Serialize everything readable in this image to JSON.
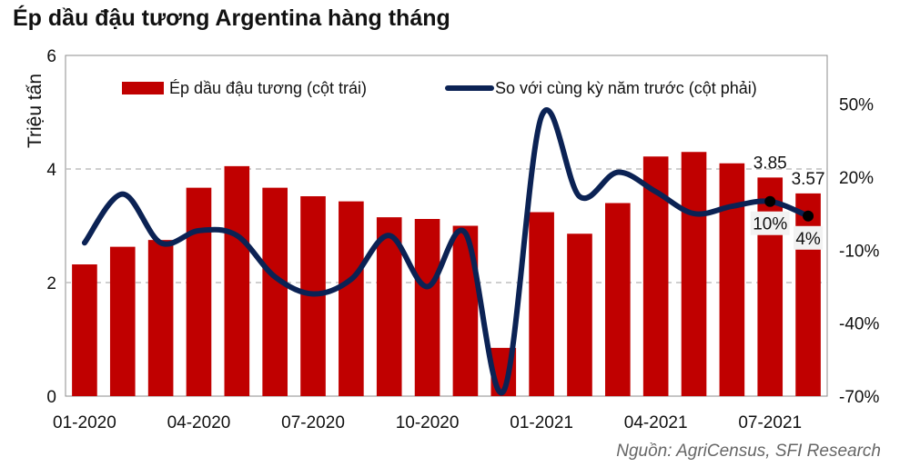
{
  "title": "Ép dầu đậu tương Argentina hàng tháng",
  "source": "Nguồn: AgriCensus, SFI Research",
  "colors": {
    "bar": "#C00000",
    "line": "#0B2254",
    "grid": "#BFBFBF"
  },
  "chart_data": {
    "type": "bar+line",
    "title": "Ép dầu đậu tương Argentina hàng tháng",
    "ylabel": "Triệu tấn",
    "ylim": [
      0,
      6
    ],
    "yticks": [
      0,
      2,
      4,
      6
    ],
    "y2lim": [
      -70,
      70
    ],
    "y2ticks": [
      "50%",
      "20%",
      "-10%",
      "-40%",
      "-70%"
    ],
    "y2tick_values": [
      50,
      20,
      -10,
      -40,
      -70
    ],
    "grid": "horizontal dashed at 2 and 4",
    "legend_placement": "top",
    "months": [
      "2020-01",
      "2020-02",
      "2020-03",
      "2020-04",
      "2020-05",
      "2020-06",
      "2020-07",
      "2020-08",
      "2020-09",
      "2020-10",
      "2020-11",
      "2020-12",
      "2021-01",
      "2021-02",
      "2021-03",
      "2021-04",
      "2021-05",
      "2021-06",
      "2021-07",
      "2021-08"
    ],
    "xtick_labels": [
      "01-2020",
      "04-2020",
      "07-2020",
      "10-2020",
      "01-2021",
      "04-2021",
      "07-2021"
    ],
    "xtick_indices": [
      0,
      3,
      6,
      9,
      12,
      15,
      18
    ],
    "series": [
      {
        "name": "Ép dầu đậu tương (cột trái)",
        "type": "bar",
        "axis": "left",
        "values": [
          2.32,
          2.63,
          2.75,
          3.67,
          4.05,
          3.67,
          3.52,
          3.43,
          3.15,
          3.12,
          3.0,
          0.85,
          3.24,
          2.86,
          3.4,
          4.22,
          4.3,
          4.1,
          3.85,
          3.57
        ]
      },
      {
        "name": "So với cùng kỳ năm trước (cột phải)",
        "type": "line",
        "axis": "right",
        "values": [
          -7,
          13,
          -7,
          -2,
          -4,
          -21,
          -28,
          -22,
          -4,
          -25,
          -3,
          -68,
          45,
          12,
          22,
          14,
          5,
          8,
          10,
          4
        ]
      }
    ],
    "annotations": [
      {
        "label": "3.85",
        "series": 0,
        "index": 18
      },
      {
        "label": "3.57",
        "series": 0,
        "index": 19
      },
      {
        "label": "10%",
        "series": 1,
        "index": 18
      },
      {
        "label": "4%",
        "series": 1,
        "index": 19
      }
    ]
  }
}
